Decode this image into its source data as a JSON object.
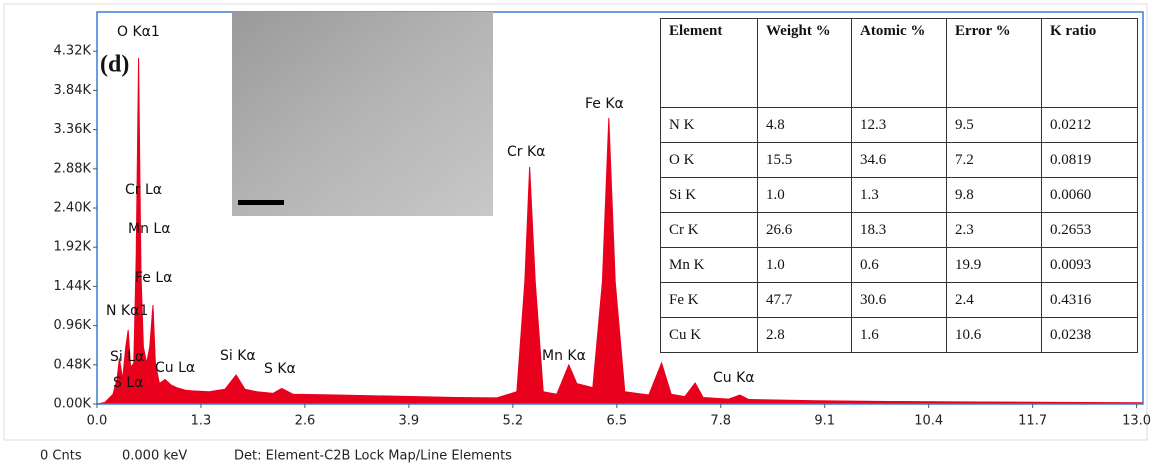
{
  "chart_data": {
    "type": "area",
    "x": [
      0.0,
      0.1,
      0.2,
      0.25,
      0.28,
      0.32,
      0.36,
      0.39,
      0.42,
      0.46,
      0.49,
      0.52,
      0.55,
      0.58,
      0.62,
      0.66,
      0.7,
      0.73,
      0.78,
      0.85,
      0.93,
      1.0,
      1.1,
      1.2,
      1.4,
      1.6,
      1.74,
      1.85,
      2.0,
      2.2,
      2.31,
      2.45,
      3.0,
      3.5,
      4.0,
      4.5,
      5.0,
      5.25,
      5.35,
      5.41,
      5.48,
      5.58,
      5.75,
      5.9,
      6.0,
      6.2,
      6.32,
      6.4,
      6.48,
      6.6,
      6.9,
      7.06,
      7.18,
      7.35,
      7.48,
      7.58,
      7.9,
      8.04,
      8.15,
      9.0,
      10.0,
      11.0,
      12.0,
      13.08
    ],
    "values": [
      0,
      20,
      120,
      300,
      560,
      300,
      700,
      906,
      450,
      500,
      1800,
      4237,
      1600,
      700,
      500,
      700,
      1212,
      500,
      250,
      300,
      230,
      200,
      170,
      160,
      150,
      180,
      355,
      180,
      150,
      130,
      190,
      120,
      110,
      100,
      90,
      80,
      75,
      150,
      1500,
      2902,
      1500,
      150,
      120,
      478,
      250,
      200,
      1500,
      3502,
      1500,
      150,
      110,
      502,
      120,
      90,
      257,
      80,
      60,
      110,
      55,
      40,
      30,
      25,
      20,
      15
    ],
    "color": "#e8001c",
    "xlim": [
      0,
      13.08
    ],
    "ylim": [
      0,
      4800
    ],
    "xticks": [
      {
        "value": 0,
        "label": "0.0"
      },
      1.3,
      2.6,
      3.9,
      5.2,
      6.5,
      7.8,
      9.1,
      10.4,
      11.7,
      {
        "value": 13,
        "label": "13.0"
      }
    ],
    "yticks": [
      {
        "value": 0,
        "label": "0.00K"
      },
      {
        "value": 480,
        "label": "0.48K"
      },
      {
        "value": 960,
        "label": "0.96K"
      },
      {
        "value": 1440,
        "label": "1.44K"
      },
      {
        "value": 1920,
        "label": "1.92K"
      },
      {
        "value": 2400,
        "label": "2.40K"
      },
      {
        "value": 2880,
        "label": "2.88K"
      },
      {
        "value": 3360,
        "label": "3.36K"
      },
      {
        "value": 3840,
        "label": "3.84K"
      },
      {
        "value": 4320,
        "label": "4.32K"
      }
    ],
    "annotations": [
      "O Kα1",
      "(d)",
      "Cr Lα",
      "Mn Lα",
      "Fe Lα",
      "N  Kα1",
      "Si Lα",
      "S Lα",
      "Cu Lα",
      "Si Kα",
      "S Kα",
      "Cr Kα",
      "Fe Kα",
      "Mn Kα",
      "Cu Kα"
    ],
    "footer": [
      "0 Cnts",
      "0.000 keV",
      "Det: Element-C2B Lock Map/Line Elements"
    ]
  },
  "table": {
    "header": [
      "Element",
      "Weight %",
      "Atomic %",
      "Error %",
      "K ratio"
    ],
    "rows": [
      [
        "N K",
        "4.8",
        "12.3",
        "9.5",
        "0.0212"
      ],
      [
        "O K",
        "15.5",
        "34.6",
        "7.2",
        "0.0819"
      ],
      [
        "Si K",
        "1.0",
        "1.3",
        "9.8",
        "0.0060"
      ],
      [
        "Cr K",
        "26.6",
        "18.3",
        "2.3",
        "0.2653"
      ],
      [
        "Mn K",
        "1.0",
        "0.6",
        "19.9",
        "0.0093"
      ],
      [
        "Fe K",
        "47.7",
        "30.6",
        "2.4",
        "0.4316"
      ],
      [
        "Cu K",
        "2.8",
        "1.6",
        "10.6",
        "0.0238"
      ]
    ]
  }
}
